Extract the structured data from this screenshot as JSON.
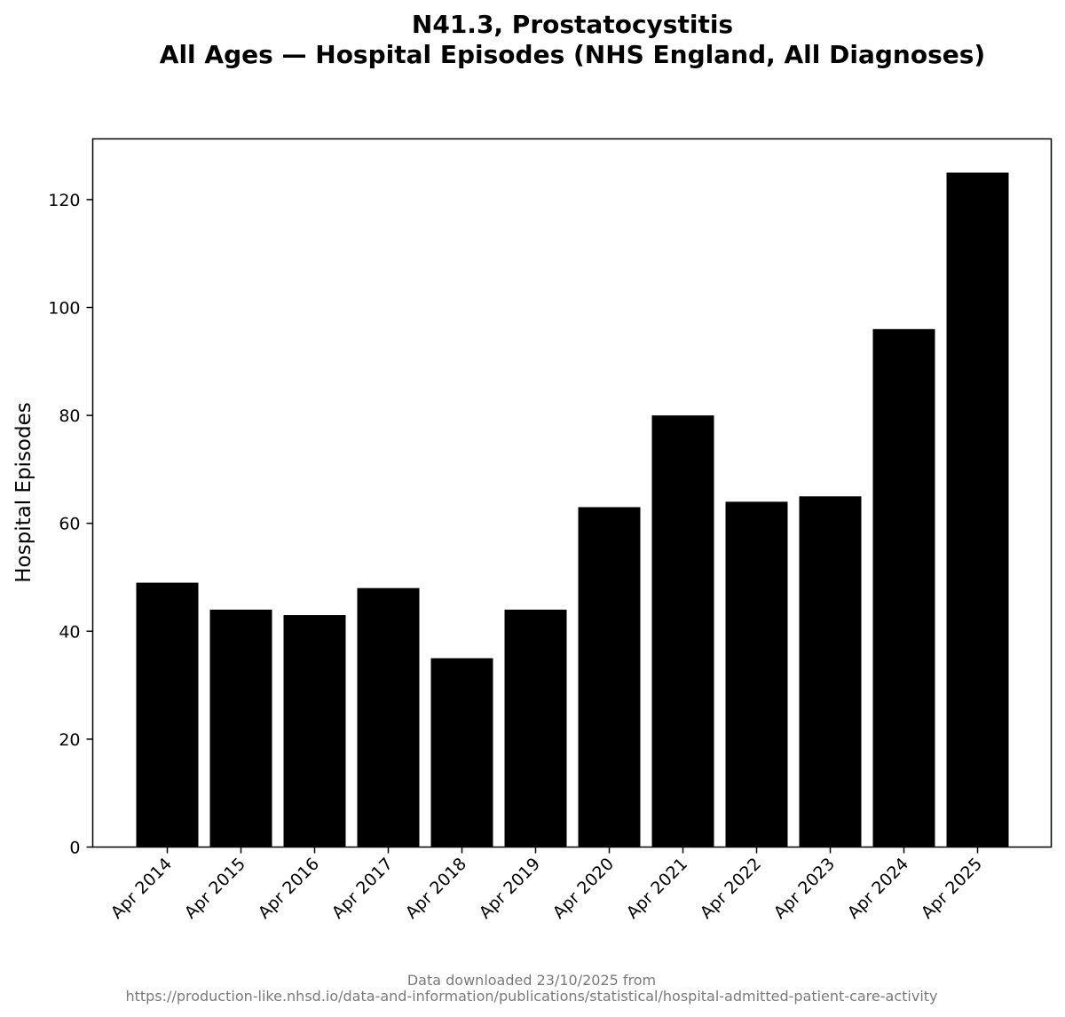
{
  "chart_data": {
    "type": "bar",
    "title_lines": [
      "N41.3, Prostatocystitis",
      "All Ages — Hospital Episodes (NHS England, All Diagnoses)"
    ],
    "xlabel": "",
    "ylabel": "Hospital Episodes",
    "categories": [
      "Apr 2014",
      "Apr 2015",
      "Apr 2016",
      "Apr 2017",
      "Apr 2018",
      "Apr 2019",
      "Apr 2020",
      "Apr 2021",
      "Apr 2022",
      "Apr 2023",
      "Apr 2024",
      "Apr 2025"
    ],
    "values": [
      49,
      44,
      43,
      48,
      35,
      44,
      63,
      80,
      64,
      65,
      96,
      125
    ],
    "ylim": [
      0,
      131.25
    ],
    "yticks": [
      0,
      20,
      40,
      60,
      80,
      100,
      120
    ],
    "grid": false,
    "bar_color": "#000000",
    "footer_lines": [
      "Data downloaded 23/10/2025 from",
      "https://production-like.nhsd.io/data-and-information/publications/statistical/hospital-admitted-patient-care-activity"
    ]
  }
}
